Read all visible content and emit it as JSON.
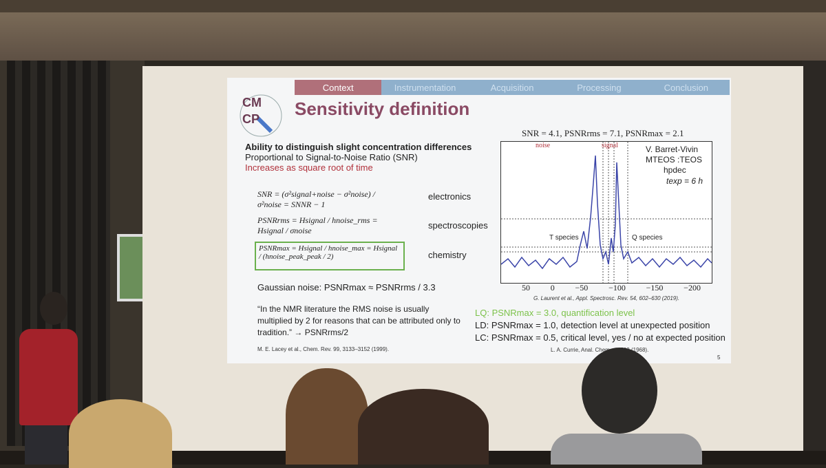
{
  "slide": {
    "nav_tabs": [
      "Context",
      "Instrumentation",
      "Acquisition",
      "Processing",
      "Conclusion"
    ],
    "logo_letters": [
      "CM",
      "CP"
    ],
    "title": "Sensitivity definition",
    "bullets": {
      "b1": "Ability to distinguish slight concentration differences",
      "b2": "Proportional to Signal-to-Noise Ratio (SNR)",
      "b3": "Increases as square root of time"
    },
    "equations": [
      {
        "formula": "SNR = (σ²signal+noise − σ²noise) / σ²noise = SNNR − 1",
        "label": "electronics"
      },
      {
        "formula": "PSNRrms = Hsignal / hnoise_rms = Hsignal / σnoise",
        "label": "spectroscopies"
      },
      {
        "formula": "PSNRmax = Hsignal / hnoise_max = Hsignal / (hnoise_peak_peak / 2)",
        "label": "chemistry"
      }
    ],
    "gaussian": "Gaussian noise: PSNRmax ≈ PSNRrms / 3.3",
    "quote": "“In the NMR literature the RMS noise is usually multiplied by 2 for reasons that can be attributed only to tradition.” → PSNRrms/2",
    "quote_ref": "M. E. Lacey et al., Chem. Rev. 99, 3133–3152 (1999).",
    "chart_header": "SNR = 4.1, PSNRrms = 7.1, PSNRmax = 2.1",
    "chart_noise": "noise",
    "chart_signal": "signal",
    "chart_author": "V. Barret-Vivin",
    "chart_inst": "MTEOS :TEOS",
    "chart_seq": "hpdec",
    "chart_texp": "texp = 6 h",
    "chart_t": "T species",
    "chart_q": "Q species",
    "chart_ticks": [
      "50",
      "0",
      "−50",
      "−100",
      "−150",
      "−200"
    ],
    "chart_ref": "G. Laurent et al., Appl. Spectrosc. Rev. 54, 602–630 (2019).",
    "levels": {
      "lq": "LQ: PSNRmax = 3.0, quantification level",
      "ld": "LD: PSNRmax = 1.0, detection level at unexpected position",
      "lc": "LC: PSNRmax = 0.5, critical level, yes / no at expected position"
    },
    "levels_ref": "L. A. Currie, Anal. Chem. ...–593 (1968).",
    "page_num": "5"
  }
}
